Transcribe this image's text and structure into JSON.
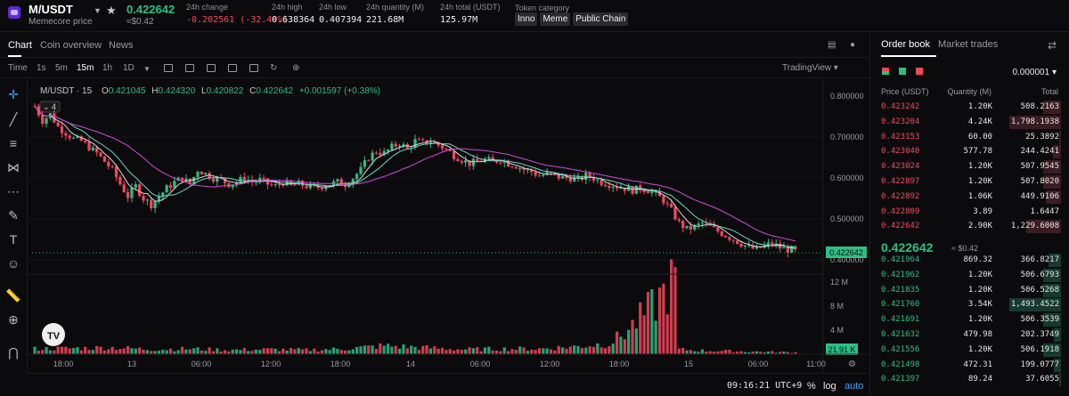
{
  "header": {
    "pair": "M/USDT",
    "subtitle": "Memecore price",
    "last_price": "0.422642",
    "last_price_usd": "≈$0.42",
    "stats": [
      {
        "label": "24h change",
        "value": "-0.202561 (-32.40%)",
        "negative": true
      },
      {
        "label": "24h high",
        "value": "0.638364"
      },
      {
        "label": "24h low",
        "value": "0.407394"
      },
      {
        "label": "24h quantity (M)",
        "value": "221.68M"
      },
      {
        "label": "24h total (USDT)",
        "value": "125.97M"
      }
    ],
    "token_category_label": "Token category",
    "tags": [
      "Inno",
      "Meme",
      "Public Chain"
    ]
  },
  "chart_tabs": {
    "chart": "Chart",
    "coin_overview": "Coin overview",
    "news": "News"
  },
  "toolbar": {
    "time": "Time",
    "intervals": [
      "1s",
      "5m",
      "15m",
      "1h",
      "1D"
    ],
    "active_interval": "15m",
    "tradingview": "TradingView"
  },
  "legend": {
    "symbol": "M/USDT · 15",
    "o_label": "O",
    "o": "0.421045",
    "h_label": "H",
    "h": "0.424320",
    "l_label": "L",
    "l": "0.420822",
    "c_label": "C",
    "c": "0.422642",
    "change": "+0.001597 (+0.38%)",
    "indicator_count": "4"
  },
  "bottombar": {
    "clock": "09:16:21 UTC+9",
    "percent": "%",
    "log": "log",
    "auto": "auto"
  },
  "colors": {
    "up": "#2ebd85",
    "down": "#f6465d",
    "ma_pink": "#d24bd8",
    "ma_teal": "#6fd6c2",
    "ma_white": "#d8d8d8"
  },
  "chart_data": {
    "type": "candlestick",
    "price_axis": {
      "ticks": [
        "0.800000",
        "0.700000",
        "0.600000",
        "0.500000",
        "0.400000"
      ],
      "range": [
        0.385,
        0.83
      ],
      "current_label": "0.422642"
    },
    "volume_axis": {
      "ticks": [
        "12 M",
        "8 M",
        "4 M"
      ],
      "range": [
        0,
        12.9
      ],
      "current_label": "21.91 K"
    },
    "time_axis": [
      "18:00",
      "13",
      "06:00",
      "12:00",
      "18:00",
      "14",
      "06:00",
      "12:00",
      "18:00",
      "15",
      "06:00",
      "11:00"
    ],
    "close_path": [
      [
        0,
        0.775
      ],
      [
        2,
        0.74
      ],
      [
        4,
        0.755
      ],
      [
        6,
        0.725
      ],
      [
        8,
        0.71
      ],
      [
        10,
        0.695
      ],
      [
        12,
        0.69
      ],
      [
        14,
        0.675
      ],
      [
        16,
        0.66
      ],
      [
        18,
        0.64
      ],
      [
        20,
        0.62
      ],
      [
        22,
        0.585
      ],
      [
        24,
        0.555
      ],
      [
        26,
        0.58
      ],
      [
        28,
        0.55
      ],
      [
        30,
        0.535
      ],
      [
        32,
        0.555
      ],
      [
        34,
        0.575
      ],
      [
        36,
        0.59
      ],
      [
        38,
        0.6
      ],
      [
        40,
        0.585
      ],
      [
        42,
        0.62
      ],
      [
        44,
        0.61
      ],
      [
        46,
        0.6
      ],
      [
        48,
        0.595
      ],
      [
        50,
        0.585
      ],
      [
        52,
        0.59
      ],
      [
        54,
        0.6
      ],
      [
        56,
        0.59
      ],
      [
        58,
        0.595
      ],
      [
        60,
        0.585
      ],
      [
        62,
        0.58
      ],
      [
        64,
        0.59
      ],
      [
        66,
        0.58
      ],
      [
        68,
        0.585
      ],
      [
        70,
        0.58
      ],
      [
        72,
        0.575
      ],
      [
        74,
        0.58
      ],
      [
        76,
        0.585
      ],
      [
        78,
        0.59
      ],
      [
        80,
        0.585
      ],
      [
        82,
        0.6
      ],
      [
        84,
        0.62
      ],
      [
        86,
        0.65
      ],
      [
        88,
        0.665
      ],
      [
        90,
        0.66
      ],
      [
        92,
        0.675
      ],
      [
        94,
        0.685
      ],
      [
        96,
        0.67
      ],
      [
        98,
        0.69
      ],
      [
        100,
        0.685
      ],
      [
        102,
        0.69
      ],
      [
        104,
        0.68
      ],
      [
        106,
        0.67
      ],
      [
        108,
        0.655
      ],
      [
        110,
        0.645
      ],
      [
        112,
        0.635
      ],
      [
        114,
        0.64
      ],
      [
        116,
        0.645
      ],
      [
        118,
        0.64
      ],
      [
        120,
        0.645
      ],
      [
        122,
        0.635
      ],
      [
        124,
        0.63
      ],
      [
        126,
        0.62
      ],
      [
        128,
        0.615
      ],
      [
        130,
        0.605
      ],
      [
        132,
        0.61
      ],
      [
        134,
        0.605
      ],
      [
        136,
        0.6
      ],
      [
        138,
        0.6
      ],
      [
        140,
        0.595
      ],
      [
        142,
        0.605
      ],
      [
        144,
        0.6
      ],
      [
        146,
        0.59
      ],
      [
        148,
        0.585
      ],
      [
        150,
        0.58
      ],
      [
        152,
        0.575
      ],
      [
        154,
        0.57
      ],
      [
        156,
        0.575
      ],
      [
        158,
        0.57
      ],
      [
        160,
        0.56
      ],
      [
        162,
        0.545
      ],
      [
        164,
        0.52
      ],
      [
        166,
        0.49
      ],
      [
        168,
        0.475
      ],
      [
        170,
        0.48
      ],
      [
        172,
        0.49
      ],
      [
        174,
        0.48
      ],
      [
        176,
        0.47
      ],
      [
        178,
        0.46
      ],
      [
        180,
        0.45
      ],
      [
        182,
        0.44
      ],
      [
        184,
        0.43
      ],
      [
        186,
        0.425
      ],
      [
        188,
        0.435
      ],
      [
        190,
        0.44
      ],
      [
        192,
        0.43
      ],
      [
        194,
        0.425
      ],
      [
        196,
        0.422
      ]
    ],
    "volume_path": [
      [
        0,
        0.9
      ],
      [
        10,
        1.0
      ],
      [
        20,
        1.1
      ],
      [
        30,
        0.8
      ],
      [
        40,
        0.9
      ],
      [
        50,
        0.7
      ],
      [
        60,
        0.8
      ],
      [
        70,
        0.7
      ],
      [
        80,
        0.9
      ],
      [
        90,
        1.4
      ],
      [
        100,
        1.1
      ],
      [
        110,
        0.8
      ],
      [
        120,
        0.9
      ],
      [
        130,
        0.9
      ],
      [
        140,
        1.3
      ],
      [
        148,
        1.8
      ],
      [
        152,
        3.5
      ],
      [
        156,
        6.0
      ],
      [
        160,
        8.5
      ],
      [
        163,
        11.0
      ],
      [
        165,
        12.5
      ],
      [
        166,
        0.8
      ],
      [
        172,
        0.6
      ],
      [
        180,
        0.5
      ],
      [
        188,
        0.4
      ],
      [
        196,
        0.3
      ]
    ],
    "candle_count": 197
  },
  "orderbook": {
    "tabs": [
      "Order book",
      "Market trades"
    ],
    "precision": "0.000001",
    "headers": [
      "Price (USDT)",
      "Quantity (M)",
      "Total"
    ],
    "asks": [
      {
        "price": "0.423242",
        "qty": "1.20K",
        "total": "508.2163",
        "depth": 0.34
      },
      {
        "price": "0.423204",
        "qty": "4.24K",
        "total": "1,798.1938",
        "depth": 1.0
      },
      {
        "price": "0.423153",
        "qty": "60.00",
        "total": "25.3892",
        "depth": 0.03
      },
      {
        "price": "0.423040",
        "qty": "577.78",
        "total": "244.4241",
        "depth": 0.16
      },
      {
        "price": "0.423024",
        "qty": "1.20K",
        "total": "507.9545",
        "depth": 0.34
      },
      {
        "price": "0.422897",
        "qty": "1.20K",
        "total": "507.8020",
        "depth": 0.34
      },
      {
        "price": "0.422892",
        "qty": "1.06K",
        "total": "449.9106",
        "depth": 0.3
      },
      {
        "price": "0.422809",
        "qty": "3.89",
        "total": "1.6447",
        "depth": 0.0
      },
      {
        "price": "0.422642",
        "qty": "2.90K",
        "total": "1,229.6008",
        "depth": 0.68
      }
    ],
    "mid_price": "0.422642",
    "mid_usd": "≈ $0.42",
    "bids": [
      {
        "price": "0.421964",
        "qty": "869.32",
        "total": "366.8217",
        "depth": 0.25
      },
      {
        "price": "0.421962",
        "qty": "1.20K",
        "total": "506.6793",
        "depth": 0.34
      },
      {
        "price": "0.421835",
        "qty": "1.20K",
        "total": "506.5268",
        "depth": 0.34
      },
      {
        "price": "0.421760",
        "qty": "3.54K",
        "total": "1,493.4522",
        "depth": 1.0
      },
      {
        "price": "0.421691",
        "qty": "1.20K",
        "total": "506.3539",
        "depth": 0.34
      },
      {
        "price": "0.421632",
        "qty": "479.98",
        "total": "202.3749",
        "depth": 0.13
      },
      {
        "price": "0.421556",
        "qty": "1.20K",
        "total": "506.1918",
        "depth": 0.34
      },
      {
        "price": "0.421498",
        "qty": "472.31",
        "total": "199.0777",
        "depth": 0.13
      },
      {
        "price": "0.421397",
        "qty": "89.24",
        "total": "37.6055",
        "depth": 0.03
      }
    ]
  }
}
